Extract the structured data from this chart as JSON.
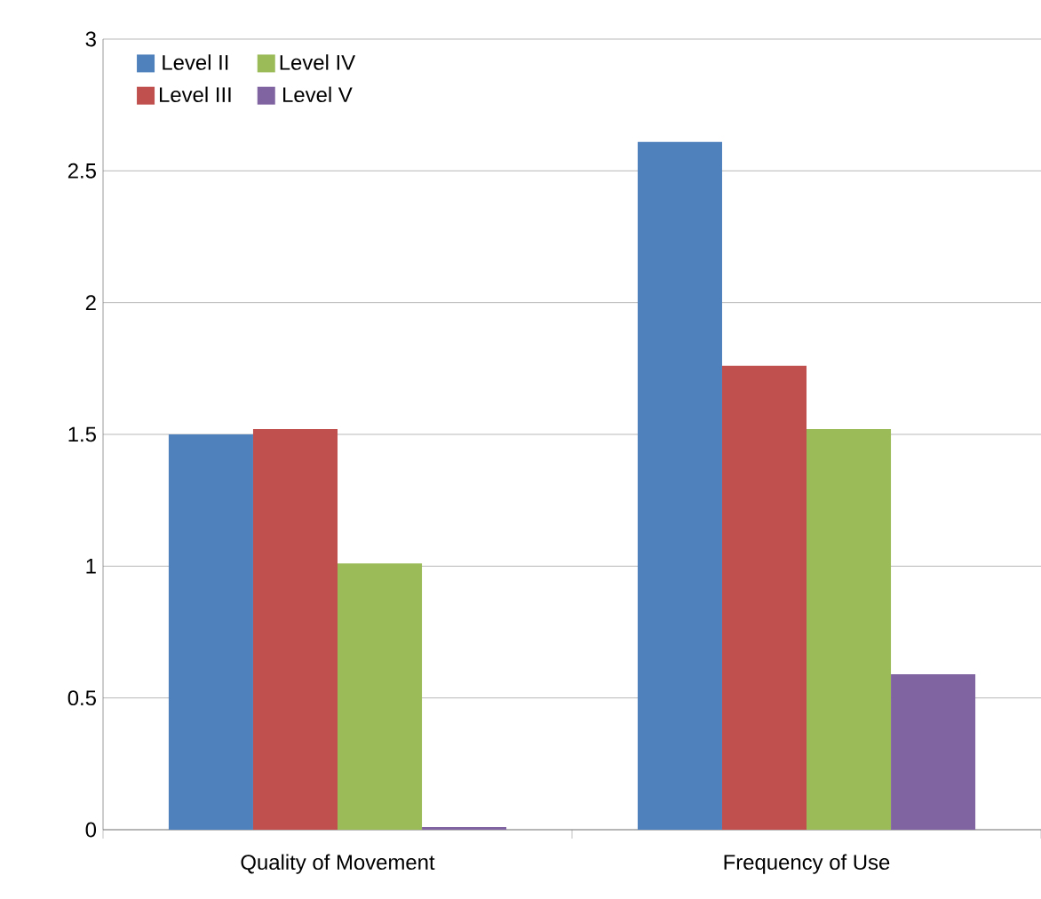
{
  "chart_data": {
    "type": "bar",
    "categories": [
      "Quality of Movement",
      "Frequency of Use"
    ],
    "series": [
      {
        "name": "Level II",
        "color": "#4f81bd",
        "values": [
          1.5,
          2.61
        ]
      },
      {
        "name": "Level III",
        "color": "#c0504d",
        "values": [
          1.52,
          1.76
        ]
      },
      {
        "name": "Level IV",
        "color": "#9bbb59",
        "values": [
          1.01,
          1.52
        ]
      },
      {
        "name": "Level V",
        "color": "#8064a2",
        "values": [
          0.01,
          0.59
        ]
      }
    ],
    "ylim": [
      0,
      3
    ],
    "yticks": [
      0,
      0.5,
      1,
      1.5,
      2,
      2.5,
      3
    ],
    "grid": "y",
    "legend": "top left"
  }
}
